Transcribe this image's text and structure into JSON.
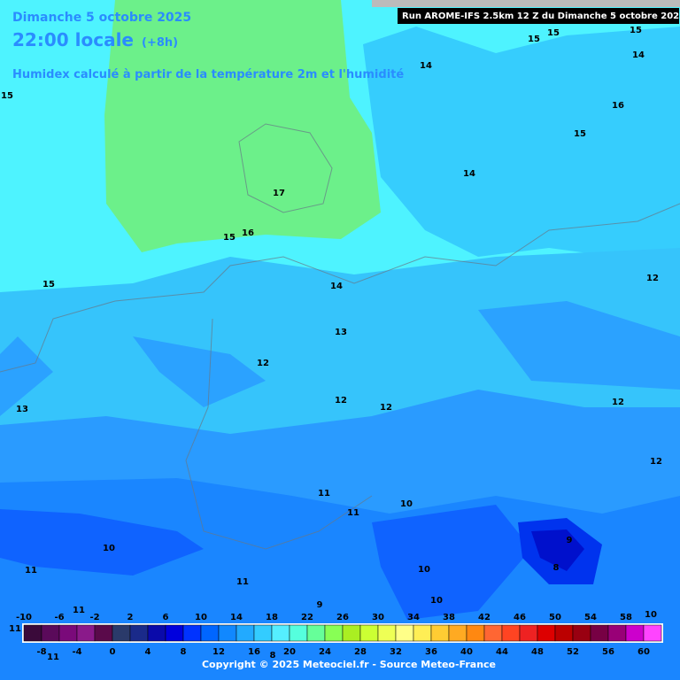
{
  "header": {
    "date": "Dimanche 5 octobre 2025",
    "time": "22:00 locale",
    "offset": "(+8h)",
    "subtitle": "Humidex calculé à partir de la température 2m et l'humidité",
    "run": "Run AROME-IFS 2.5km 12 Z du Dimanche 5 octobre 2025"
  },
  "contour_labels": [
    15,
    15,
    15,
    15,
    14,
    14,
    16,
    15,
    14,
    17,
    16,
    15,
    15,
    14,
    12,
    13,
    13,
    12,
    12,
    12,
    12,
    12,
    11,
    11,
    10,
    9,
    8,
    10,
    11,
    11,
    10,
    10,
    9,
    11,
    11,
    11,
    8,
    10
  ],
  "legend": {
    "top_labels": [
      -10,
      -6,
      -2,
      2,
      6,
      10,
      14,
      18,
      22,
      26,
      30,
      34,
      38,
      42,
      46,
      50,
      54,
      58
    ],
    "bottom_labels": [
      -8,
      -4,
      0,
      4,
      8,
      12,
      16,
      20,
      24,
      28,
      32,
      36,
      40,
      44,
      48,
      52,
      56,
      60
    ],
    "colors": [
      "#3a0a3a",
      "#5a0a5a",
      "#7a0a7a",
      "#8a1a8a",
      "#5a0a4a",
      "#2a3a6a",
      "#1a2a8a",
      "#0a0aaa",
      "#0000dd",
      "#0033ff",
      "#0066ff",
      "#1188ff",
      "#22aaff",
      "#33ccff",
      "#55eeff",
      "#55ffdd",
      "#66ff99",
      "#88ff55",
      "#aaee22",
      "#ccff33",
      "#eeff55",
      "#ffff88",
      "#ffee55",
      "#ffcc33",
      "#ffaa22",
      "#ff8811",
      "#ff6633",
      "#ff4422",
      "#ee2222",
      "#dd0000",
      "#bb0000",
      "#990011",
      "#770044",
      "#990077",
      "#cc00cc",
      "#ff44ff"
    ]
  },
  "copyright": "Copyright © 2025 Meteociel.fr - Source Meteo-France"
}
